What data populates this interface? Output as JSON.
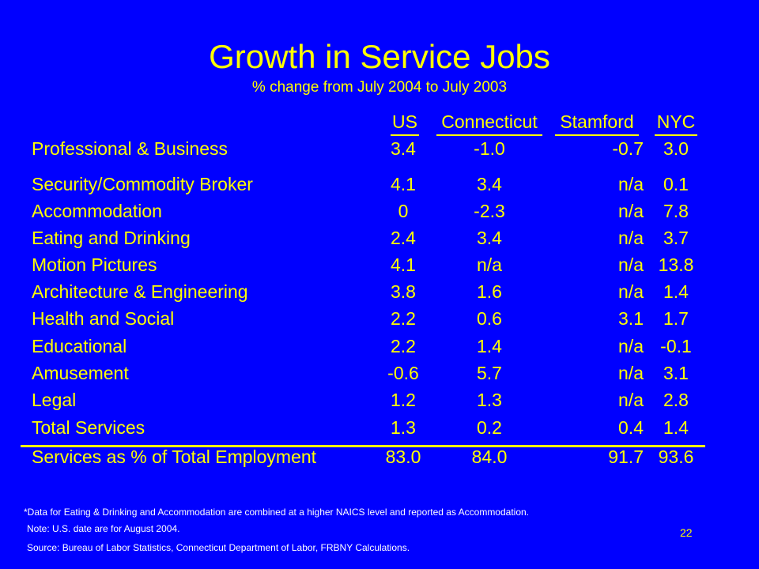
{
  "slide": {
    "title": "Growth in Service Jobs",
    "subtitle": "% change from July 2004 to July 2003",
    "page_number": "22"
  },
  "colors": {
    "background": "#0000ff",
    "text": "#ffff00",
    "notes": "#ffffff"
  },
  "table": {
    "headers": [
      "US",
      "Connecticut",
      "Stamford",
      "NYC"
    ],
    "rows": [
      {
        "label": "Professional & Business",
        "us": "3.4",
        "ct": "-1.0",
        "st": "-0.7",
        "ny": "3.0"
      },
      {
        "label": "Security/Commodity Broker",
        "us": "4.1",
        "ct": "3.4",
        "st": "n/a",
        "ny": "0.1"
      },
      {
        "label": "Accommodation",
        "us": "0",
        "ct": "-2.3",
        "st": "n/a",
        "ny": "7.8"
      },
      {
        "label": "Eating and Drinking",
        "us": "2.4",
        "ct": "3.4",
        "st": "n/a",
        "ny": "3.7"
      },
      {
        "label": "Motion Pictures",
        "us": "4.1",
        "ct": "n/a",
        "st": "n/a",
        "ny": "13.8"
      },
      {
        "label": "Architecture & Engineering",
        "us": "3.8",
        "ct": "1.6",
        "st": "n/a",
        "ny": "1.4"
      },
      {
        "label": "Health and Social",
        "us": "2.2",
        "ct": "0.6",
        "st": "3.1",
        "ny": "1.7"
      },
      {
        "label": "Educational",
        "us": "2.2",
        "ct": "1.4",
        "st": "n/a",
        "ny": "-0.1"
      },
      {
        "label": "Amusement",
        "us": "-0.6",
        "ct": "5.7",
        "st": "n/a",
        "ny": "3.1"
      },
      {
        "label": "Legal",
        "us": "1.2",
        "ct": "1.3",
        "st": "n/a",
        "ny": "2.8"
      },
      {
        "label": "Total Services",
        "us": "1.3",
        "ct": "0.2",
        "st": "0.4",
        "ny": "1.4"
      },
      {
        "label": "Services as % of Total Employment",
        "us": "83.0",
        "ct": "84.0",
        "st": "91.7",
        "ny": "93.6"
      }
    ]
  },
  "notes": {
    "footnote": "*Data for Eating & Drinking and Accommodation are combined at a higher NAICS level and reported as Accommodation.",
    "note": "Note: U.S. date are for August 2004.",
    "source": "Source: Bureau of Labor Statistics, Connecticut Department of Labor, FRBNY Calculations."
  }
}
